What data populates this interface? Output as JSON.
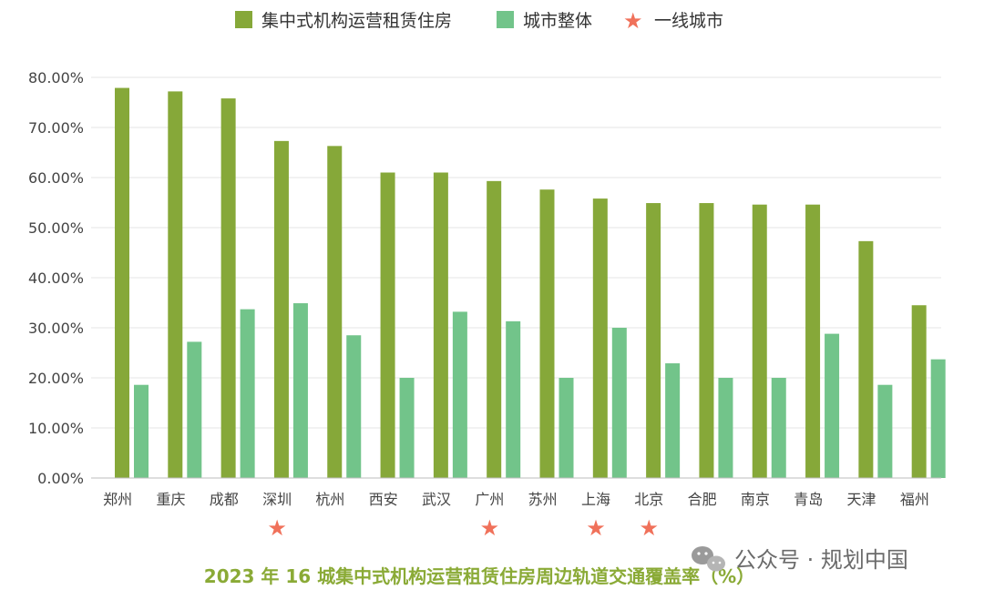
{
  "colors": {
    "primary": "#86a839",
    "secondary": "#72c48a",
    "star": "#f0715a",
    "grid": "#e6e6e6",
    "axis": "#bdbdbd",
    "caption": "#8aaa36"
  },
  "legend": {
    "primary_label": "集中式机构运营租赁住房",
    "secondary_label": "城市整体",
    "star_label": "一线城市",
    "star_glyph": "★"
  },
  "caption": "2023 年 16 城集中式机构运营租赁住房周边轨道交通覆盖率（%）",
  "watermark": "公众号 · 规划中国",
  "chart_data": {
    "type": "bar",
    "title": "2023 年 16 城集中式机构运营租赁住房周边轨道交通覆盖率（%）",
    "xlabel": "",
    "ylabel": "",
    "ylim": [
      0,
      80
    ],
    "yticks": [
      0,
      10,
      20,
      30,
      40,
      50,
      60,
      70,
      80
    ],
    "ytick_labels": [
      "0.00%",
      "10.00%",
      "20.00%",
      "30.00%",
      "40.00%",
      "50.00%",
      "60.00%",
      "70.00%",
      "80.00%"
    ],
    "grid": true,
    "legend_position": "top-center",
    "categories": [
      "郑州",
      "重庆",
      "成都",
      "深圳",
      "杭州",
      "西安",
      "武汉",
      "广州",
      "苏州",
      "上海",
      "北京",
      "合肥",
      "南京",
      "青岛",
      "天津",
      "福州"
    ],
    "series": [
      {
        "name": "集中式机构运营租赁住房",
        "values": [
          77.9,
          77.2,
          75.8,
          67.3,
          66.3,
          61.0,
          61.0,
          59.3,
          57.6,
          55.8,
          54.9,
          54.9,
          54.6,
          54.6,
          47.3,
          34.5
        ]
      },
      {
        "name": "城市整体",
        "values": [
          18.6,
          27.2,
          33.7,
          34.9,
          28.5,
          20.0,
          33.2,
          31.3,
          20.0,
          30.0,
          22.9,
          20.0,
          20.0,
          28.8,
          18.6,
          23.7
        ]
      }
    ],
    "first_tier_cities": [
      "深圳",
      "广州",
      "上海",
      "北京"
    ]
  }
}
